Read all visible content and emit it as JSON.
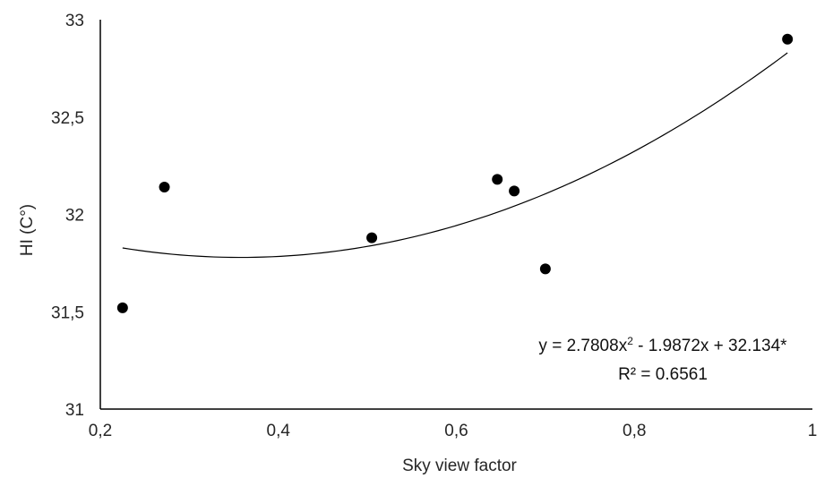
{
  "chart_data": {
    "type": "scatter",
    "xlabel": "Sky view factor",
    "ylabel": "HI (C°)",
    "xlim": [
      0.2,
      1.0
    ],
    "ylim": [
      31,
      33
    ],
    "xticks": [
      0.2,
      0.4,
      0.6,
      0.8,
      1.0
    ],
    "xtick_labels": [
      "0,2",
      "0,4",
      "0,6",
      "0,8",
      "1"
    ],
    "yticks": [
      31,
      31.5,
      32,
      32.5,
      33
    ],
    "ytick_labels": [
      "31",
      "31,5",
      "32",
      "32,5",
      "33"
    ],
    "grid": false,
    "legend": "none",
    "series": [
      {
        "x": [
          0.225,
          0.272,
          0.505,
          0.646,
          0.665,
          0.7,
          0.972
        ],
        "y": [
          31.52,
          32.14,
          31.88,
          32.18,
          32.12,
          31.72,
          32.9
        ]
      }
    ],
    "trendline": {
      "type": "polynomial",
      "coefficients": [
        2.7808,
        -1.9872,
        32.134
      ],
      "x_range": [
        0.225,
        0.972
      ]
    },
    "annotations": {
      "equation_prefix": "y = 2.7808x",
      "equation_sup": "2",
      "equation_suffix": " - 1.9872x + 32.134*",
      "r_squared": "R² = 0.6561"
    },
    "colors": {
      "marker": "#000000",
      "line": "#000000",
      "axis": "#000000"
    }
  }
}
